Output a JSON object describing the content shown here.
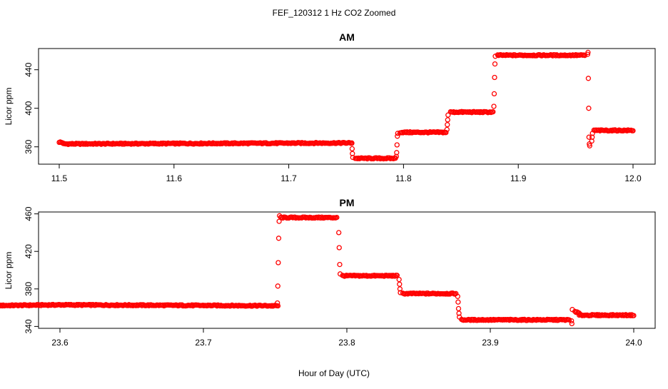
{
  "figure": {
    "title": "FEF_120312  1 Hz CO2 Zoomed",
    "xlabel": "Hour of Day (UTC)",
    "point_color": "#ff0000"
  },
  "chart_data": [
    {
      "type": "scatter",
      "title": "AM",
      "xlabel": "",
      "ylabel": "Licor ppm",
      "xlim": [
        11.5,
        12.0
      ],
      "ylim": [
        342,
        462
      ],
      "xticks": [
        "11.5",
        "11.6",
        "11.7",
        "11.8",
        "11.9",
        "12.0"
      ],
      "yticks": [
        "360",
        "400",
        "440"
      ],
      "grid": false,
      "series": [
        {
          "marker": "open-circle",
          "color": "#ff0000",
          "segments": [
            {
              "x": [
                11.5,
                11.5035
              ],
              "y": [
                365,
                364
              ]
            },
            {
              "x": [
                11.5035,
                11.755
              ],
              "y": [
                363,
                364
              ]
            },
            {
              "x": [
                11.758,
                11.793
              ],
              "y": [
                348,
                348
              ]
            },
            {
              "x": [
                11.797,
                11.837
              ],
              "y": [
                375,
                375
              ]
            },
            {
              "x": [
                11.841,
                11.878
              ],
              "y": [
                396,
                396
              ]
            },
            {
              "x": [
                11.882,
                11.958
              ],
              "y": [
                455,
                455
              ]
            },
            {
              "x": [
                11.966,
                12.0
              ],
              "y": [
                377,
                377
              ]
            }
          ],
          "transitions": [
            {
              "x": 11.7555,
              "y": [
                364,
                358,
                353,
                349
              ]
            },
            {
              "x": 11.7945,
              "y": [
                350,
                354,
                362,
                371,
                374
              ]
            },
            {
              "x": 11.8385,
              "y": [
                378,
                383,
                388,
                393
              ]
            },
            {
              "x": 11.8795,
              "y": [
                402,
                415,
                432,
                446,
                454
              ]
            },
            {
              "x": 11.9615,
              "y": [
                456,
                458,
                431,
                400,
                370,
                363,
                361
              ]
            },
            {
              "x": 11.9645,
              "y": [
                366,
                370,
                374
              ]
            }
          ]
        }
      ]
    },
    {
      "type": "scatter",
      "title": "PM",
      "xlabel": "Hour of Day (UTC)",
      "ylabel": "Licor ppm",
      "xlim": [
        23.54,
        24.0
      ],
      "ylim": [
        338,
        462
      ],
      "xticks": [
        "23.6",
        "23.7",
        "23.8",
        "23.9",
        "24.0"
      ],
      "yticks": [
        "340",
        "380",
        "420",
        "460"
      ],
      "grid": false,
      "series": [
        {
          "marker": "open-circle",
          "color": "#ff0000",
          "segments": [
            {
              "x": [
                23.541,
                23.6
              ],
              "y": [
                362,
                363
              ]
            },
            {
              "x": [
                23.6,
                23.752
              ],
              "y": [
                363,
                362
              ]
            },
            {
              "x": [
                23.754,
                23.793
              ],
              "y": [
                456,
                456
              ]
            },
            {
              "x": [
                23.797,
                23.835
              ],
              "y": [
                394,
                394
              ]
            },
            {
              "x": [
                23.839,
                23.876
              ],
              "y": [
                375,
                375
              ]
            },
            {
              "x": [
                23.88,
                23.955
              ],
              "y": [
                347,
                347
              ]
            },
            {
              "x": [
                23.959,
                23.962
              ],
              "y": [
                356,
                354
              ]
            },
            {
              "x": [
                23.962,
                24.0
              ],
              "y": [
                352,
                352
              ]
            }
          ],
          "transitions": [
            {
              "x": 23.7525,
              "y": [
                365,
                383,
                408,
                434,
                452,
                458
              ]
            },
            {
              "x": 23.795,
              "y": [
                440,
                424,
                406,
                396
              ]
            },
            {
              "x": 23.837,
              "y": [
                390,
                385,
                380,
                376
              ]
            },
            {
              "x": 23.878,
              "y": [
                372,
                366,
                359,
                354,
                350
              ]
            },
            {
              "x": 23.957,
              "y": [
                346,
                343,
                358
              ]
            }
          ]
        }
      ]
    }
  ]
}
